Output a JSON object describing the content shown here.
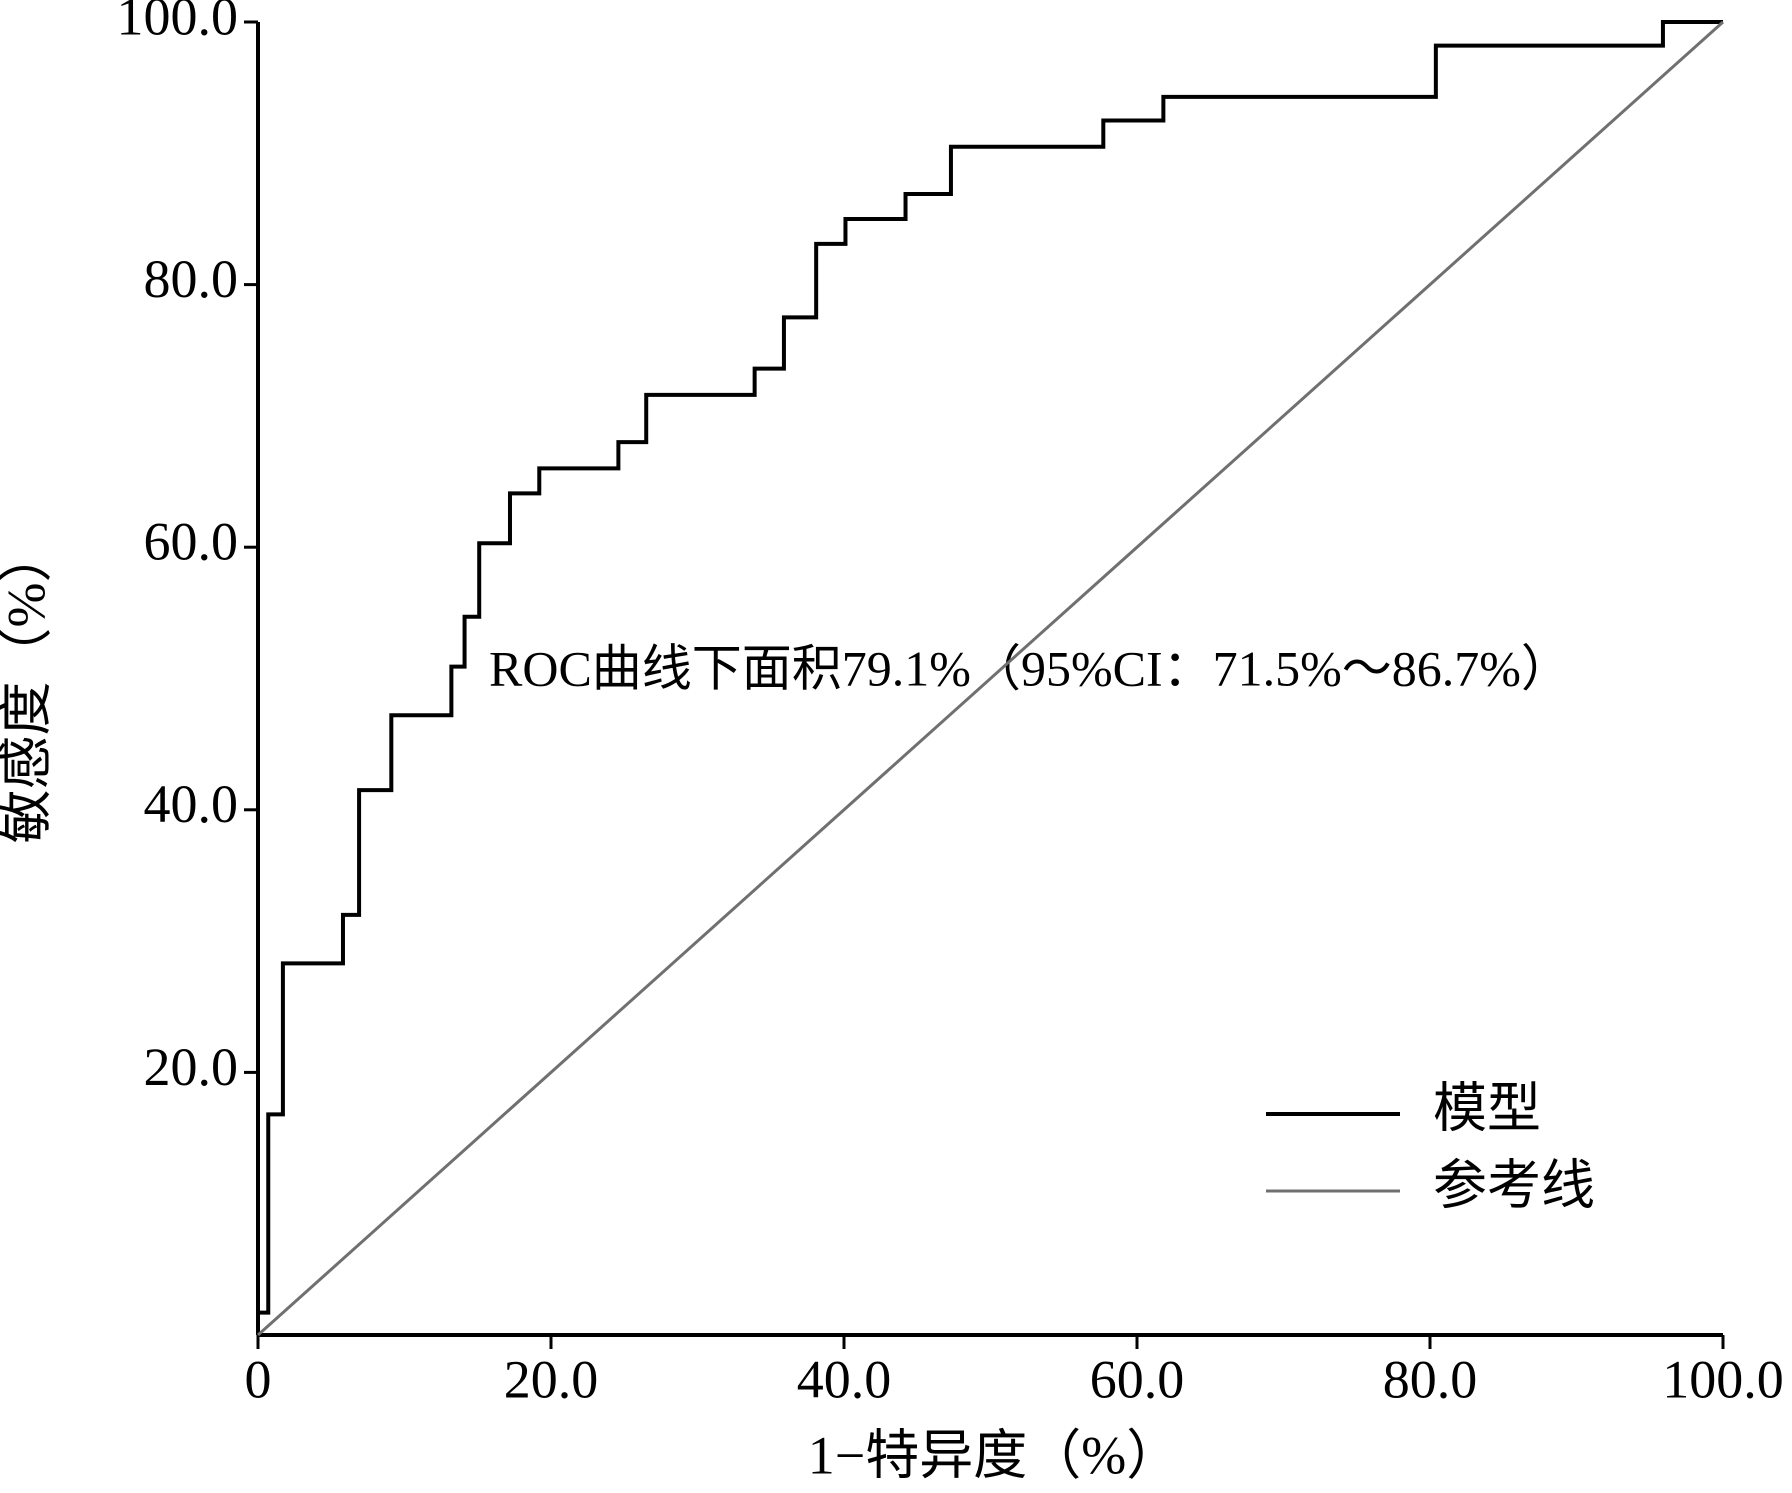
{
  "chart_data": {
    "type": "line",
    "xlabel": "1−特异度（%）",
    "ylabel": "敏感度（%）",
    "annotation": "ROC曲线下面积79.1%（95%CI：71.5%～86.7%）",
    "xlim": [
      0,
      100
    ],
    "ylim": [
      0,
      100
    ],
    "xticks": [
      0,
      {
        "value": 20,
        "label": "20.0"
      },
      {
        "value": 40,
        "label": "40.0"
      },
      {
        "value": 60,
        "label": "60.0"
      },
      {
        "value": 80,
        "label": "80.0"
      },
      {
        "value": 100,
        "label": "100.0"
      }
    ],
    "yticks": [
      {
        "value": 20,
        "label": "20.0"
      },
      {
        "value": 40,
        "label": "40.0"
      },
      {
        "value": 60,
        "label": "60.0"
      },
      {
        "value": 80,
        "label": "80.0"
      },
      {
        "value": 100,
        "label": "100.0"
      }
    ],
    "series": [
      {
        "name": "模型",
        "color": "#000000",
        "x": [
          0,
          0,
          0.7,
          0.7,
          1.7,
          1.7,
          5.8,
          5.8,
          6.9,
          6.9,
          9.1,
          9.1,
          13.2,
          13.2,
          14.1,
          14.1,
          15.1,
          15.1,
          17.2,
          17.2,
          19.2,
          19.2,
          24.6,
          24.6,
          26.5,
          26.5,
          33.9,
          33.9,
          35.9,
          35.9,
          38.1,
          38.1,
          40.1,
          40.1,
          44.2,
          44.2,
          47.3,
          47.3,
          57.7,
          57.7,
          61.8,
          61.8,
          80.4,
          80.4,
          95.9,
          95.9,
          100
        ],
        "y": [
          0,
          1.7,
          1.7,
          16.8,
          16.8,
          28.3,
          28.3,
          32.0,
          32.0,
          41.5,
          41.5,
          47.2,
          47.2,
          50.9,
          50.9,
          54.7,
          54.7,
          60.3,
          60.3,
          64.1,
          64.1,
          66.0,
          66.0,
          68.0,
          68.0,
          71.6,
          71.6,
          73.6,
          73.6,
          77.5,
          77.5,
          83.1,
          83.1,
          85.0,
          85.0,
          86.9,
          86.9,
          90.5,
          90.5,
          92.5,
          92.5,
          94.3,
          94.3,
          98.2,
          98.2,
          100,
          100
        ]
      },
      {
        "name": "参考线",
        "color": "#707070",
        "x": [
          0,
          100
        ],
        "y": [
          0,
          100
        ]
      }
    ]
  }
}
